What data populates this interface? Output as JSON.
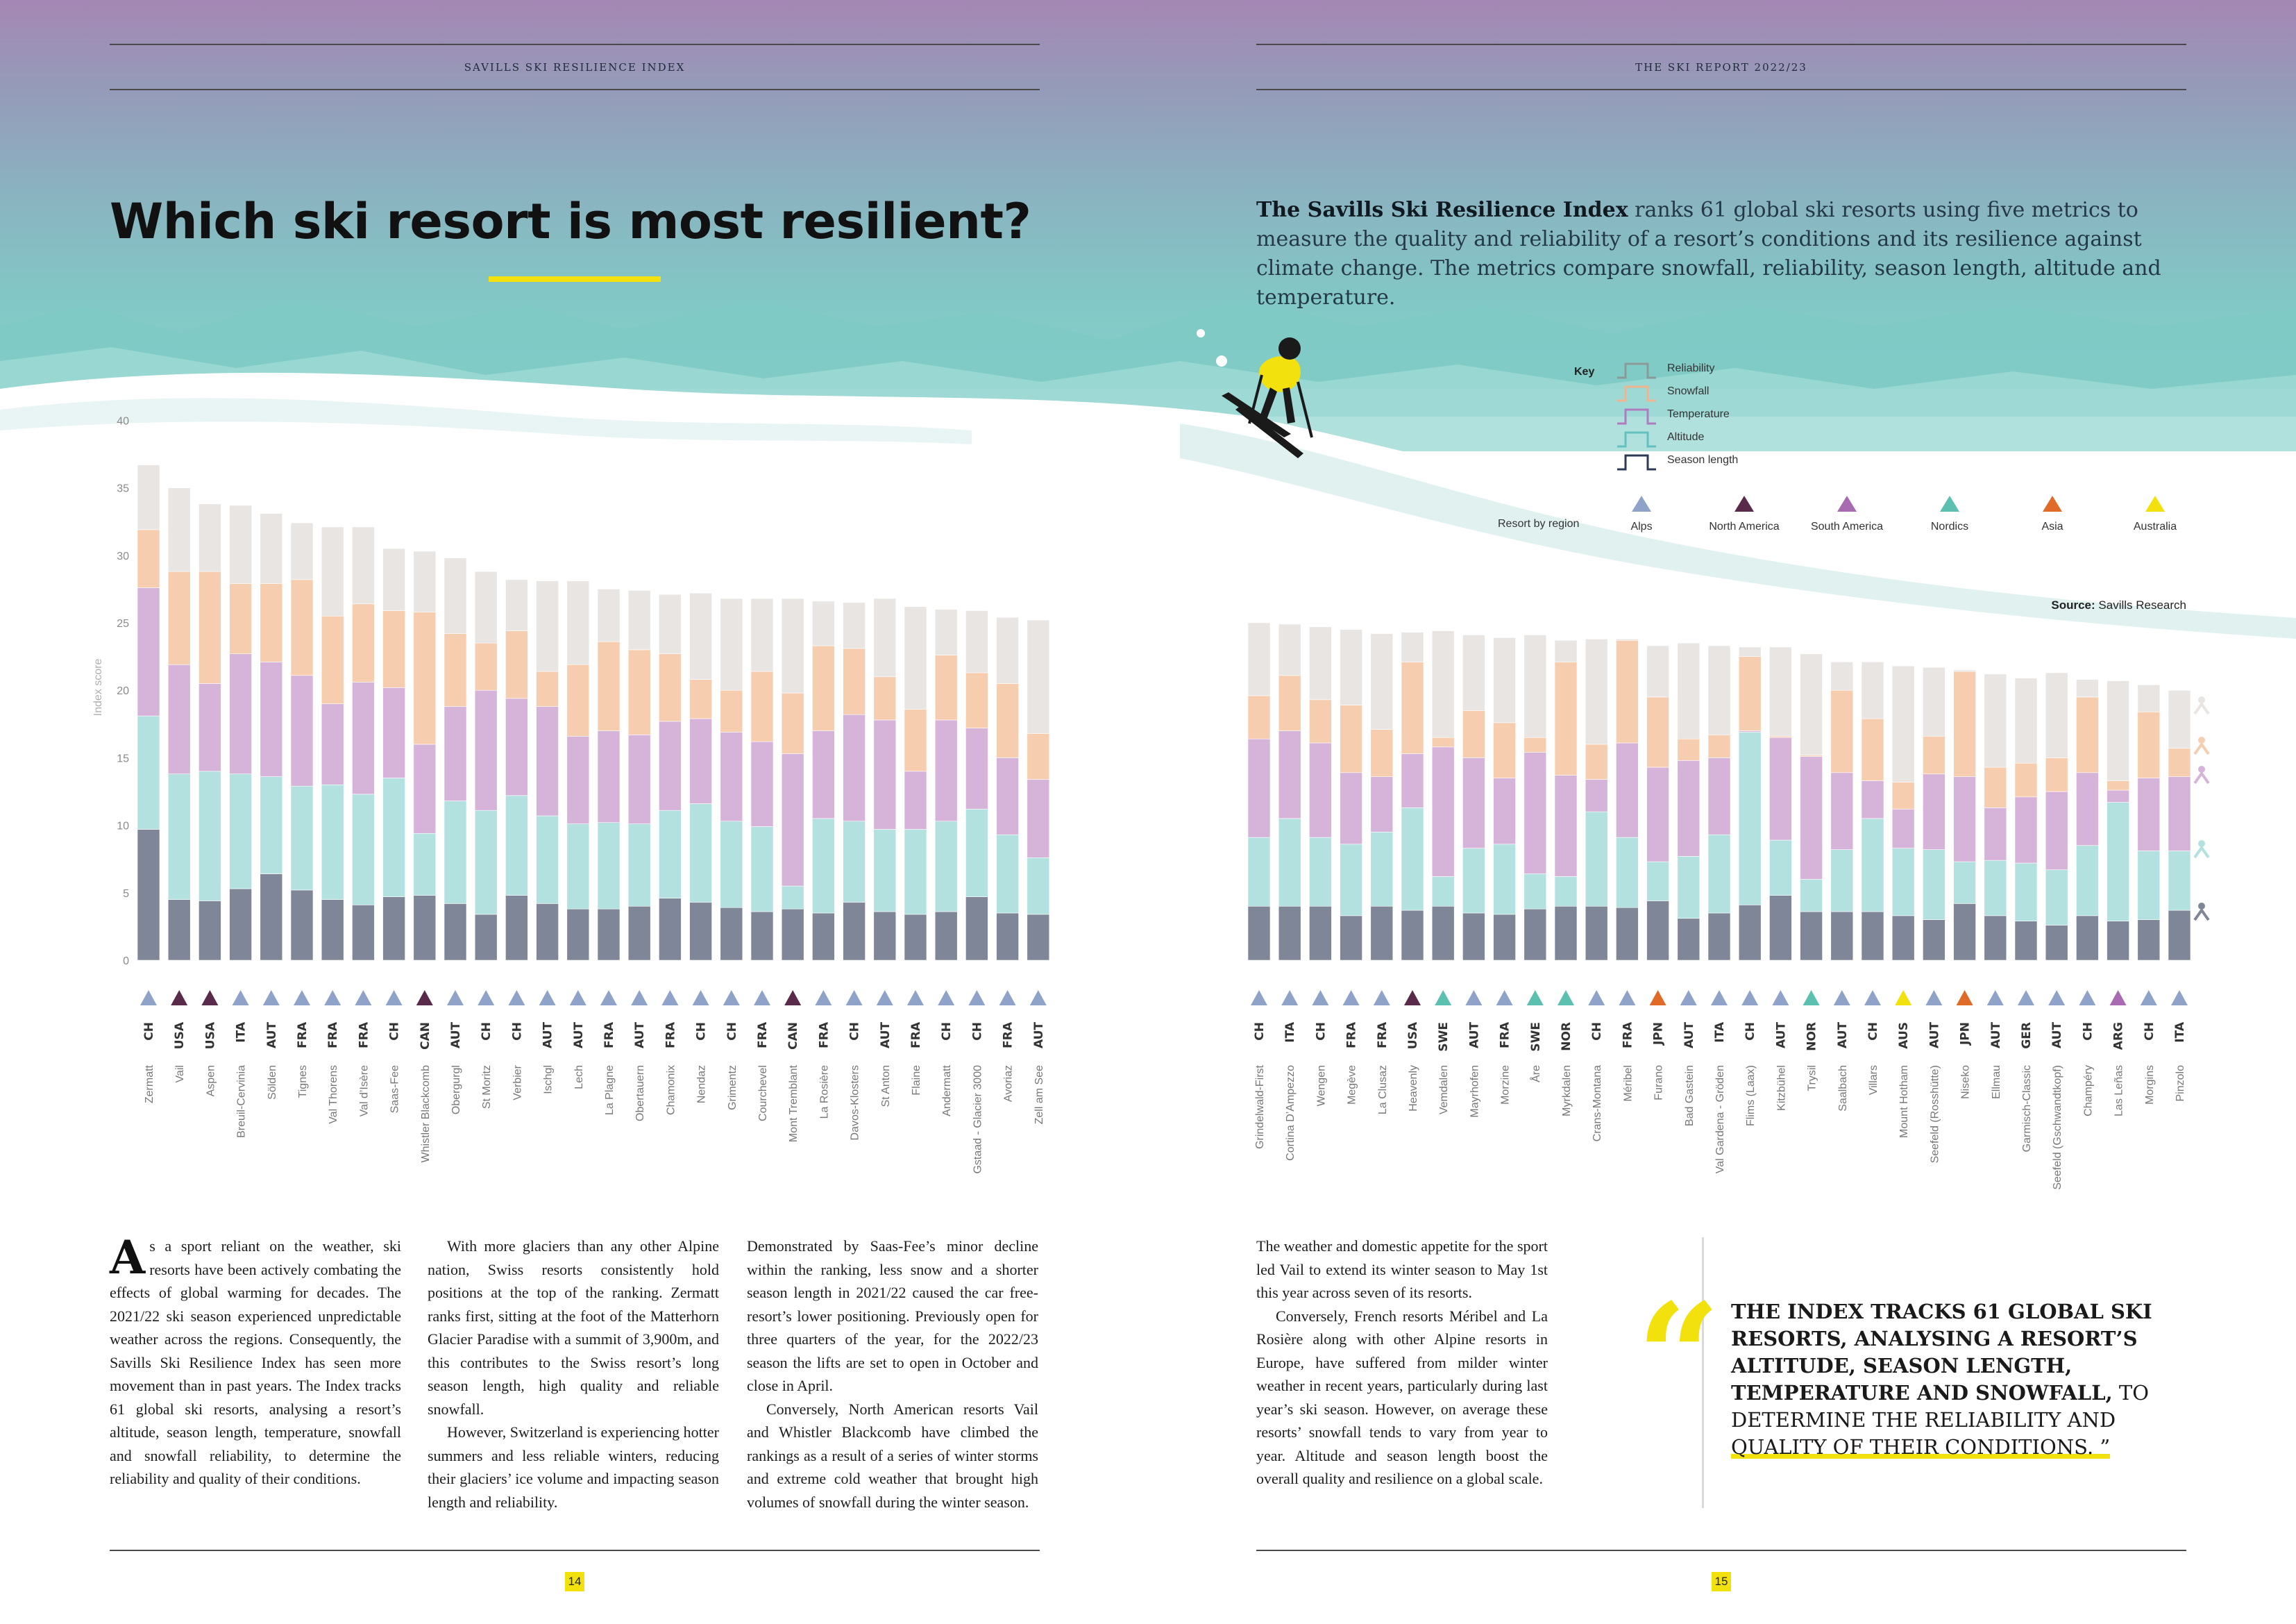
{
  "header": {
    "left_running_head": "SAVILLS SKI RESILIENCE INDEX",
    "right_running_head": "THE SKI REPORT 2022/23"
  },
  "title": "Which ski resort is most resilient?",
  "intro": {
    "bold": "The Savills Ski Resilience Index",
    "rest": " ranks 61 global ski resorts using five metrics to measure the quality and reliability of a resort’s conditions and its resilience against climate change. The metrics compare snowfall, reliability, season length, altitude and temperature."
  },
  "key": {
    "title": "Key",
    "items": [
      {
        "label": "Reliability",
        "color": "#8a9a9a"
      },
      {
        "label": "Snowfall",
        "color": "#f0b58e"
      },
      {
        "label": "Temperature",
        "color": "#b07cc0"
      },
      {
        "label": "Altitude",
        "color": "#63c0c0"
      },
      {
        "label": "Season length",
        "color": "#2b3a55"
      }
    ],
    "region_label": "Resort by region",
    "regions": [
      {
        "label": "Alps",
        "color": "#8fa3c8"
      },
      {
        "label": "North America",
        "color": "#5a2a4a"
      },
      {
        "label": "South America",
        "color": "#a86ab0"
      },
      {
        "label": "Nordics",
        "color": "#5cc0b0"
      },
      {
        "label": "Asia",
        "color": "#e06a28"
      },
      {
        "label": "Australia",
        "color": "#f2e10c"
      }
    ]
  },
  "source": {
    "bold": "Source:",
    "text": " Savills Research"
  },
  "chart_data": {
    "type": "bar",
    "stacked": true,
    "ylabel": "Index score",
    "ylim": [
      0,
      40
    ],
    "yticks": [
      0,
      5,
      10,
      15,
      20,
      25,
      30,
      35,
      40
    ],
    "series_order": [
      "Season length",
      "Altitude",
      "Temperature",
      "Snowfall",
      "Reliability"
    ],
    "series_colors": {
      "Season length": "#7e8697",
      "Altitude": "#b3e1df",
      "Temperature": "#d6b4d9",
      "Snowfall": "#f7cdb0",
      "Reliability": "#e8e5e3"
    },
    "resorts": [
      {
        "name": "Zermatt",
        "country": "CH",
        "region": "Alps",
        "values": [
          9.7,
          8.4,
          9.5,
          4.3,
          4.8
        ]
      },
      {
        "name": "Vail",
        "country": "USA",
        "region": "North America",
        "values": [
          4.5,
          9.3,
          8.1,
          6.9,
          6.2
        ]
      },
      {
        "name": "Aspen",
        "country": "USA",
        "region": "North America",
        "values": [
          4.4,
          9.6,
          6.5,
          8.3,
          5.0
        ]
      },
      {
        "name": "Breuil-Cervinia",
        "country": "ITA",
        "region": "Alps",
        "values": [
          5.3,
          8.5,
          8.9,
          5.2,
          5.8
        ]
      },
      {
        "name": "Sölden",
        "country": "AUT",
        "region": "Alps",
        "values": [
          6.4,
          7.2,
          8.5,
          5.8,
          5.2
        ]
      },
      {
        "name": "Tignes",
        "country": "FRA",
        "region": "Alps",
        "values": [
          5.2,
          7.7,
          8.2,
          7.1,
          4.2
        ]
      },
      {
        "name": "Val Thorens",
        "country": "FRA",
        "region": "Alps",
        "values": [
          4.5,
          8.5,
          6.0,
          6.5,
          6.6
        ]
      },
      {
        "name": "Val d’Isère",
        "country": "FRA",
        "region": "Alps",
        "values": [
          4.1,
          8.2,
          8.3,
          5.8,
          5.7
        ]
      },
      {
        "name": "Saas-Fee",
        "country": "CH",
        "region": "Alps",
        "values": [
          4.7,
          8.8,
          6.7,
          5.7,
          4.6
        ]
      },
      {
        "name": "Whistler Blackcomb",
        "country": "CAN",
        "region": "North America",
        "values": [
          4.8,
          4.6,
          6.6,
          9.8,
          4.5
        ]
      },
      {
        "name": "Obergurgl",
        "country": "AUT",
        "region": "Alps",
        "values": [
          4.2,
          7.6,
          7.0,
          5.4,
          5.6
        ]
      },
      {
        "name": "St Moritz",
        "country": "CH",
        "region": "Alps",
        "values": [
          3.4,
          7.7,
          8.9,
          3.5,
          5.3
        ]
      },
      {
        "name": "Verbier",
        "country": "CH",
        "region": "Alps",
        "values": [
          4.8,
          7.4,
          7.2,
          5.0,
          3.8
        ]
      },
      {
        "name": "Ischgl",
        "country": "AUT",
        "region": "Alps",
        "values": [
          4.2,
          6.5,
          8.1,
          2.6,
          6.7
        ]
      },
      {
        "name": "Lech",
        "country": "AUT",
        "region": "Alps",
        "values": [
          3.8,
          6.3,
          6.5,
          5.3,
          6.2
        ]
      },
      {
        "name": "La Plagne",
        "country": "FRA",
        "region": "Alps",
        "values": [
          3.8,
          6.4,
          6.8,
          6.6,
          3.9
        ]
      },
      {
        "name": "Obertauern",
        "country": "AUT",
        "region": "Alps",
        "values": [
          4.0,
          6.1,
          6.6,
          6.3,
          4.4
        ]
      },
      {
        "name": "Chamonix",
        "country": "FRA",
        "region": "Alps",
        "values": [
          4.6,
          6.5,
          6.6,
          5.0,
          4.4
        ]
      },
      {
        "name": "Nendaz",
        "country": "CH",
        "region": "Alps",
        "values": [
          4.3,
          7.3,
          6.3,
          2.9,
          6.4
        ]
      },
      {
        "name": "Grimentz",
        "country": "CH",
        "region": "Alps",
        "values": [
          3.9,
          6.4,
          6.6,
          3.1,
          6.8
        ]
      },
      {
        "name": "Courchevel",
        "country": "FRA",
        "region": "Alps",
        "values": [
          3.6,
          6.3,
          6.3,
          5.2,
          5.4
        ]
      },
      {
        "name": "Mont Tremblant",
        "country": "CAN",
        "region": "North America",
        "values": [
          3.8,
          1.7,
          9.8,
          4.5,
          7.0
        ]
      },
      {
        "name": "La Rosière",
        "country": "FRA",
        "region": "Alps",
        "values": [
          3.5,
          7.0,
          6.5,
          6.3,
          3.3
        ]
      },
      {
        "name": "Davos-Klosters",
        "country": "CH",
        "region": "Alps",
        "values": [
          4.3,
          6.0,
          7.9,
          4.9,
          3.4
        ]
      },
      {
        "name": "St Anton",
        "country": "AUT",
        "region": "Alps",
        "values": [
          3.6,
          6.1,
          8.1,
          3.2,
          5.8
        ]
      },
      {
        "name": "Flaine",
        "country": "FRA",
        "region": "Alps",
        "values": [
          3.4,
          6.3,
          4.3,
          4.6,
          7.6
        ]
      },
      {
        "name": "Andermatt",
        "country": "CH",
        "region": "Alps",
        "values": [
          3.6,
          6.7,
          7.5,
          4.8,
          3.4
        ]
      },
      {
        "name": "Gstaad - Glacier 3000",
        "country": "CH",
        "region": "Alps",
        "values": [
          4.7,
          6.5,
          6.0,
          4.1,
          4.6
        ]
      },
      {
        "name": "Avoriaz",
        "country": "FRA",
        "region": "Alps",
        "values": [
          3.5,
          5.8,
          5.7,
          5.5,
          4.9
        ]
      },
      {
        "name": "Zell am See",
        "country": "AUT",
        "region": "Alps",
        "values": [
          3.4,
          4.2,
          5.8,
          3.4,
          8.4
        ]
      },
      {
        "name": "Grindelwald-First",
        "country": "CH",
        "region": "Alps",
        "values": [
          4.0,
          5.1,
          7.3,
          3.2,
          5.4
        ]
      },
      {
        "name": "Cortina D’Ampezzo",
        "country": "ITA",
        "region": "Alps",
        "values": [
          4.0,
          6.5,
          6.5,
          4.1,
          3.8
        ]
      },
      {
        "name": "Wengen",
        "country": "CH",
        "region": "Alps",
        "values": [
          4.0,
          5.1,
          7.0,
          3.2,
          5.4
        ]
      },
      {
        "name": "Megève",
        "country": "FRA",
        "region": "Alps",
        "values": [
          3.3,
          5.3,
          5.3,
          5.0,
          5.6
        ]
      },
      {
        "name": "La Clusaz",
        "country": "FRA",
        "region": "Alps",
        "values": [
          4.0,
          5.5,
          4.1,
          3.5,
          7.1
        ]
      },
      {
        "name": "Heavenly",
        "country": "USA",
        "region": "North America",
        "values": [
          3.7,
          7.6,
          4.0,
          6.8,
          2.2
        ]
      },
      {
        "name": "Vemdalen",
        "country": "SWE",
        "region": "Nordics",
        "values": [
          4.0,
          2.2,
          9.6,
          0.7,
          7.9
        ]
      },
      {
        "name": "Mayrhofen",
        "country": "AUT",
        "region": "Alps",
        "values": [
          3.5,
          4.8,
          6.7,
          3.5,
          5.6
        ]
      },
      {
        "name": "Morzine",
        "country": "FRA",
        "region": "Alps",
        "values": [
          3.4,
          5.2,
          4.9,
          4.1,
          6.3
        ]
      },
      {
        "name": "Åre",
        "country": "SWE",
        "region": "Nordics",
        "values": [
          3.8,
          2.6,
          9.0,
          1.1,
          7.6
        ]
      },
      {
        "name": "Myrkdalen",
        "country": "NOR",
        "region": "Nordics",
        "values": [
          4.0,
          2.2,
          7.5,
          8.4,
          1.6
        ]
      },
      {
        "name": "Crans-Montana",
        "country": "CH",
        "region": "Alps",
        "values": [
          4.0,
          7.0,
          2.4,
          2.6,
          7.8
        ]
      },
      {
        "name": "Méribel",
        "country": "FRA",
        "region": "Alps",
        "values": [
          3.9,
          5.2,
          7.0,
          7.6,
          0.1
        ]
      },
      {
        "name": "Furano",
        "country": "JPN",
        "region": "Asia",
        "values": [
          4.4,
          2.9,
          7.0,
          5.2,
          3.8
        ]
      },
      {
        "name": "Bad Gastein",
        "country": "AUT",
        "region": "Alps",
        "values": [
          3.1,
          4.6,
          7.1,
          1.6,
          7.1
        ]
      },
      {
        "name": "Val Gardena - Gröden",
        "country": "ITA",
        "region": "Alps",
        "values": [
          3.5,
          5.8,
          5.7,
          1.7,
          6.6
        ]
      },
      {
        "name": "Flims (Laax)",
        "country": "CH",
        "region": "Alps",
        "values": [
          4.1,
          12.8,
          0.1,
          5.5,
          0.7
        ]
      },
      {
        "name": "Kitzbühel",
        "country": "AUT",
        "region": "Alps",
        "values": [
          4.8,
          4.1,
          7.6,
          0.1,
          6.6
        ]
      },
      {
        "name": "Trysil",
        "country": "NOR",
        "region": "Nordics",
        "values": [
          3.6,
          2.4,
          9.1,
          0.1,
          7.5
        ]
      },
      {
        "name": "Saalbach",
        "country": "AUT",
        "region": "Alps",
        "values": [
          3.6,
          4.6,
          5.7,
          6.1,
          2.1
        ]
      },
      {
        "name": "Villars",
        "country": "CH",
        "region": "Alps",
        "values": [
          3.6,
          6.9,
          2.8,
          4.6,
          4.2
        ]
      },
      {
        "name": "Mount Hotham",
        "country": "AUS",
        "region": "Australia",
        "values": [
          3.3,
          5.0,
          2.9,
          2.0,
          8.6
        ]
      },
      {
        "name": "Seefeld (Rosshütte)",
        "country": "AUT",
        "region": "Alps",
        "values": [
          3.0,
          5.2,
          5.6,
          2.8,
          5.1
        ]
      },
      {
        "name": "Niseko",
        "country": "JPN",
        "region": "Asia",
        "values": [
          4.2,
          3.1,
          6.3,
          7.8,
          0.1
        ]
      },
      {
        "name": "Ellmau",
        "country": "AUT",
        "region": "Alps",
        "values": [
          3.3,
          4.1,
          3.9,
          3.0,
          6.9
        ]
      },
      {
        "name": "Garmisch-Classic",
        "country": "GER",
        "region": "Alps",
        "values": [
          2.9,
          4.3,
          4.9,
          2.5,
          6.3
        ]
      },
      {
        "name": "Seefeld (Gschwandtkopf)",
        "country": "AUT",
        "region": "Alps",
        "values": [
          2.6,
          4.1,
          5.8,
          2.5,
          6.3
        ]
      },
      {
        "name": "Champéry",
        "country": "CH",
        "region": "Alps",
        "values": [
          3.3,
          5.2,
          5.4,
          5.6,
          1.3
        ]
      },
      {
        "name": "Las Leñas",
        "country": "ARG",
        "region": "South America",
        "values": [
          2.9,
          8.8,
          0.9,
          0.7,
          7.4
        ]
      },
      {
        "name": "Morgins",
        "country": "CH",
        "region": "Alps",
        "values": [
          3.0,
          5.1,
          5.4,
          4.9,
          2.0
        ]
      },
      {
        "name": "Pinzolo",
        "country": "ITA",
        "region": "Alps",
        "values": [
          3.7,
          4.4,
          5.5,
          2.1,
          4.3
        ]
      }
    ]
  },
  "body": {
    "col1_dropcap": "A",
    "col1": "s a sport reliant on the weather, ski resorts have been actively combating the effects of global warming for decades. The 2021/22 ski season experienced unpredictable weather across the regions. Consequently, the Savills Ski Resilience Index has seen more movement than in past years. The Index tracks 61 global ski resorts, analysing a resort’s altitude, season length, temperature, snowfall and snowfall reliability, to determine the reliability and quality of their conditions.",
    "col2_p1": "With more glaciers than any other Alpine nation, Swiss resorts consistently hold positions at the top of the ranking. Zermatt ranks first, sitting at the foot of the Matterhorn Glacier Paradise with a summit of 3,900m, and this contributes to the Swiss resort’s long season length, high quality and reliable snowfall.",
    "col2_p2": "However, Switzerland is experiencing hotter summers and less reliable winters, reducing their glaciers’ ice volume and impacting season length and reliability.",
    "col3_p1": "Demonstrated by Saas-Fee’s minor decline within the ranking, less snow and a shorter season length in 2021/22 caused the car free-resort’s lower positioning. Previously open for three quarters of the year, for the 2022/23 season the lifts are set to open in October and close in April.",
    "col3_p2": "Conversely, North American resorts Vail and Whistler Blackcomb have climbed the rankings as a result of a series of winter storms and extreme cold weather that brought high volumes of snowfall during the winter season.",
    "col4_p1": "The weather and domestic appetite for the sport led Vail to extend its winter season to May 1st this year across seven of its resorts.",
    "col4_p2": "Conversely, French resorts Méribel and La Rosière along with other Alpine resorts in Europe, have suffered from milder winter weather in recent years, particularly during last year’s ski season. However, on average these resorts’ snowfall tends to vary from year to year. Altitude and season length boost the overall quality and resilience on a global scale."
  },
  "quote": {
    "mark": "“",
    "bold": "THE INDEX TRACKS 61 GLOBAL SKI RESORTS, ANALYSING A RESORT’S ALTITUDE, SEASON LENGTH, TEMPERATURE AND SNOWFALL,",
    "mid": " TO DETERMINE THE RELIABILITY AND ",
    "underlined": "QUALITY OF THEIR CONDITIONS. ”"
  },
  "pages": {
    "left": "14",
    "right": "15"
  }
}
